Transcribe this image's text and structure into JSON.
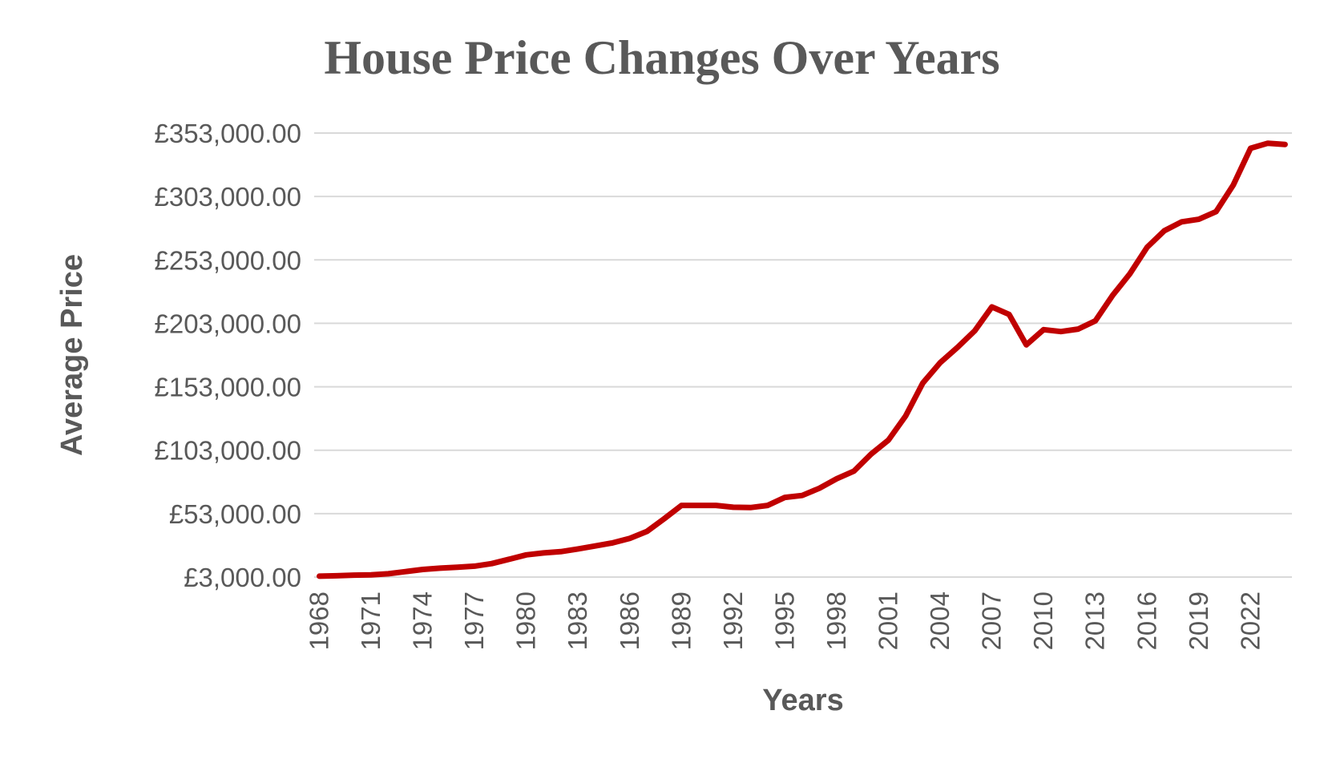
{
  "chart_data": {
    "type": "line",
    "title": "House Price Changes Over Years",
    "xlabel": "Years",
    "ylabel": "Average Price",
    "ylim": [
      3000,
      353000
    ],
    "y_ticks": [
      3000,
      53000,
      103000,
      153000,
      203000,
      253000,
      303000,
      353000
    ],
    "y_tick_labels": [
      "£3,000.00",
      "£53,000.00",
      "£103,000.00",
      "£153,000.00",
      "£203,000.00",
      "£253,000.00",
      "£303,000.00",
      "£353,000.00"
    ],
    "x_tick_labels": [
      "1968",
      "1971",
      "1974",
      "1977",
      "1980",
      "1983",
      "1986",
      "1989",
      "1992",
      "1995",
      "1998",
      "2001",
      "2004",
      "2007",
      "2010",
      "2013",
      "2016",
      "2019",
      "2022"
    ],
    "grid": true,
    "legend": "none",
    "colors": {
      "line": "#C00000",
      "grid": "#D9D9D9",
      "text": "#595959"
    },
    "series": [
      {
        "x": [
          1968,
          1969,
          1970,
          1971,
          1972,
          1973,
          1974,
          1975,
          1976,
          1977,
          1978,
          1979,
          1980,
          1981,
          1982,
          1983,
          1984,
          1985,
          1986,
          1987,
          1988,
          1989,
          1990,
          1991,
          1992,
          1993,
          1994,
          1995,
          1996,
          1997,
          1998,
          1999,
          2000,
          2001,
          2002,
          2003,
          2004,
          2005,
          2006,
          2007,
          2008,
          2009,
          2010,
          2011,
          2012,
          2013,
          2014,
          2015,
          2016,
          2017,
          2018,
          2019,
          2020,
          2021,
          2022,
          2023,
          2024
        ],
        "values": [
          3700,
          4000,
          4500,
          4800,
          5600,
          7300,
          9000,
          10000,
          10800,
          11600,
          13600,
          17000,
          20500,
          22000,
          23000,
          25200,
          27500,
          29900,
          33500,
          39000,
          49000,
          59500,
          59500,
          59500,
          58000,
          57800,
          59500,
          65800,
          67300,
          73000,
          80500,
          86500,
          100000,
          111000,
          130000,
          156000,
          172000,
          184000,
          197000,
          216000,
          210000,
          186000,
          198000,
          196500,
          198500,
          205000,
          225000,
          242000,
          263000,
          276000,
          283000,
          285000,
          291000,
          312000,
          341000,
          345000,
          344000
        ]
      }
    ]
  }
}
